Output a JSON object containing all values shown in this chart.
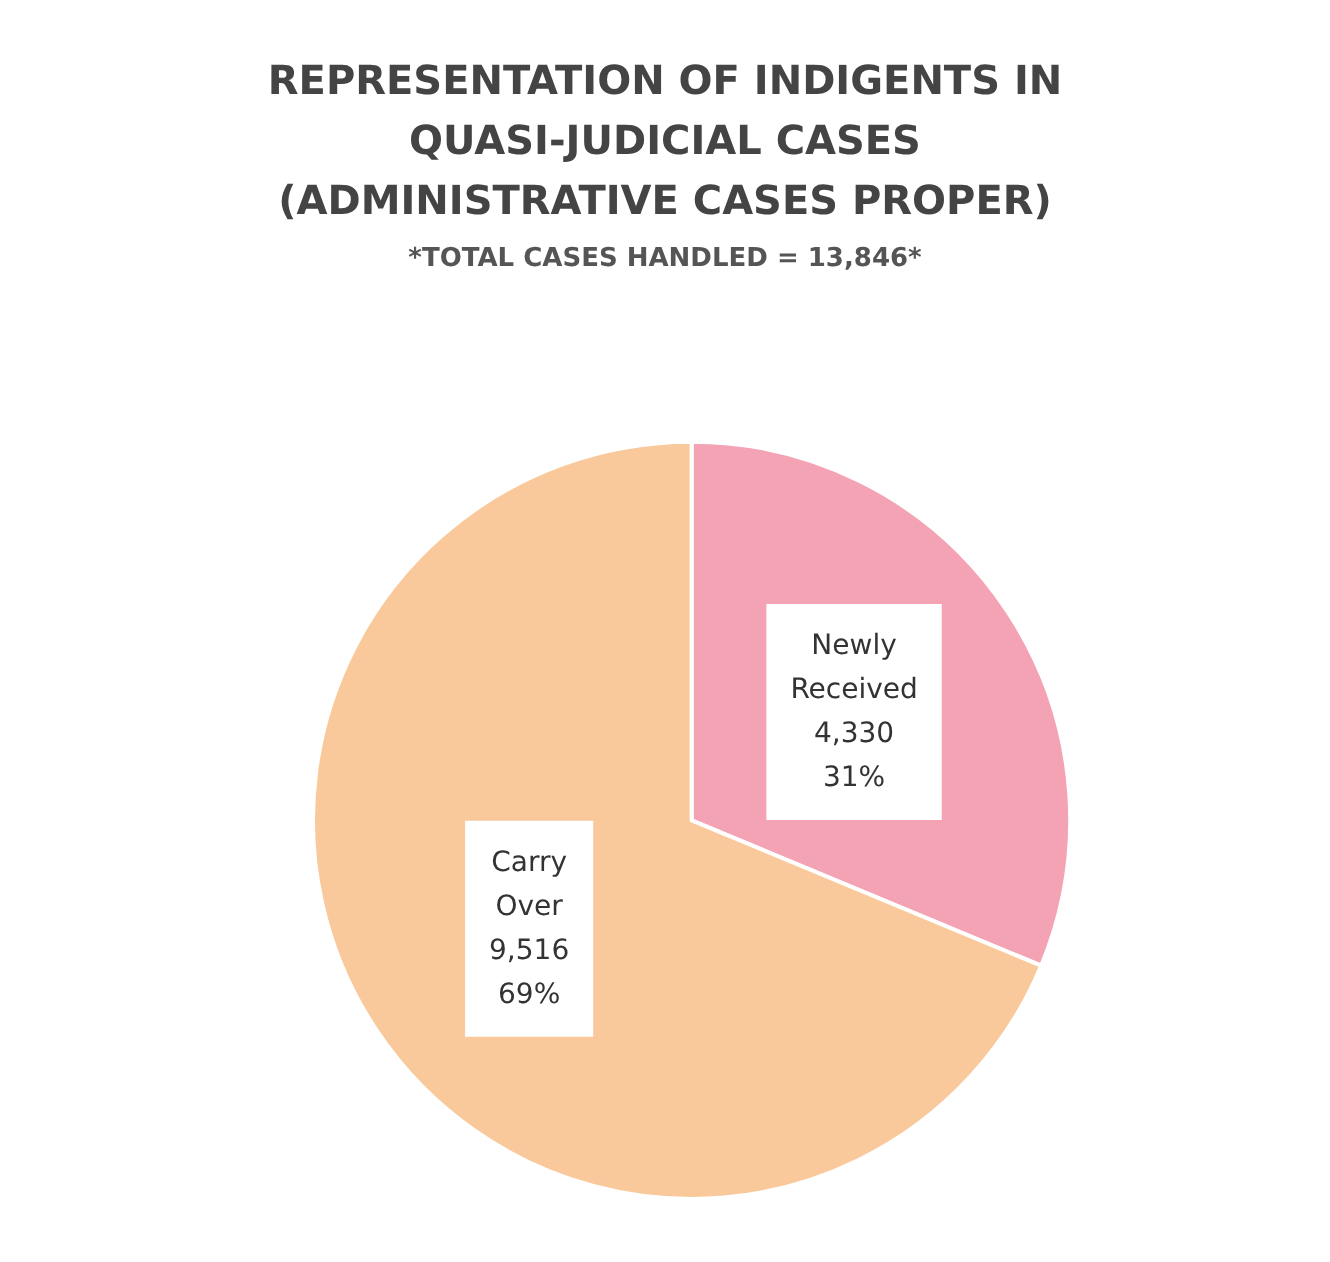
{
  "chart_data": {
    "type": "pie",
    "title": "REPRESENTATION OF INDIGENTS IN\nQUASI-JUDICIAL CASES\n(ADMINISTRATIVE CASES PROPER)",
    "subtitle": "*TOTAL CASES HANDLED = 13,846*",
    "categories": [
      "Newly Received",
      "Carry Over"
    ],
    "values": [
      4330,
      9516
    ],
    "colors": [
      "#f4a3b5",
      "#f9c99b"
    ],
    "value_labels": [
      "4,330\n31%",
      "9,516\n69%"
    ],
    "legend": false
  }
}
